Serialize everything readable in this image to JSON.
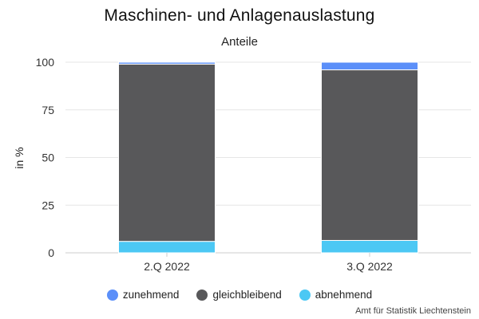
{
  "chart_data": {
    "type": "bar",
    "stacked": true,
    "title": "Maschinen- und Anlagenauslastung",
    "subtitle": "Anteile",
    "ylabel": "in %",
    "xlabel": "",
    "ylim": [
      0,
      100
    ],
    "yticks": [
      "0",
      "25",
      "50",
      "75",
      "100"
    ],
    "grid": true,
    "legend_position": "bottom",
    "categories": [
      "2.Q 2022",
      "3.Q 2022"
    ],
    "series": [
      {
        "name": "abnehmend",
        "color": "#4cc8f4",
        "values": [
          6,
          6.5
        ]
      },
      {
        "name": "gleichbleibend",
        "color": "#58585a",
        "values": [
          93,
          89.5
        ]
      },
      {
        "name": "zunehmend",
        "color": "#5b8ff9",
        "values": [
          1,
          4
        ]
      }
    ],
    "legend_order": [
      "zunehmend",
      "gleichbleibend",
      "abnehmend"
    ]
  },
  "source": "Amt für Statistik Liechtenstein"
}
